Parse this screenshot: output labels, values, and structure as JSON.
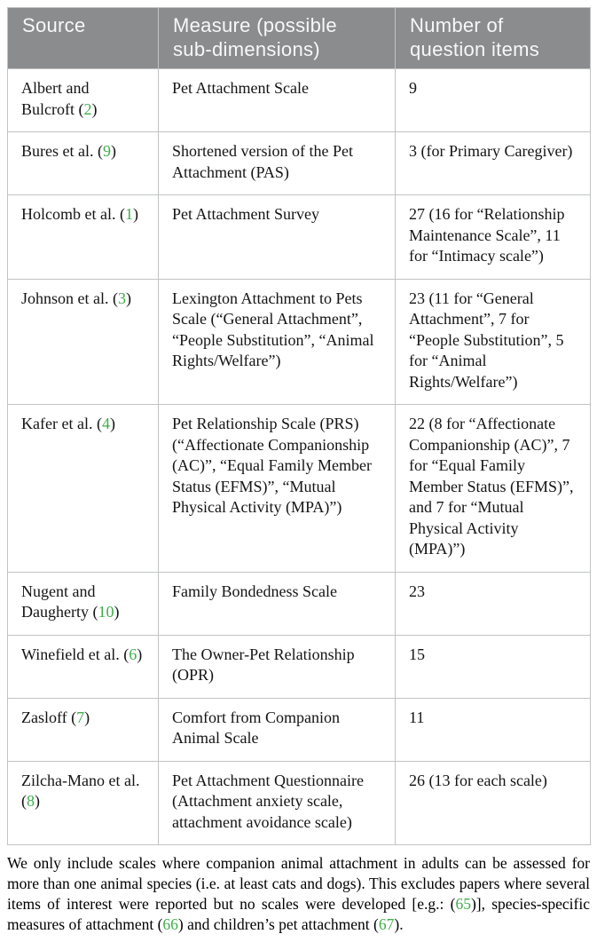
{
  "colors": {
    "header_bg": "#8a8c8d",
    "header_text": "#f7f8f8",
    "border": "#c2c3c4",
    "citation_green": "#3eae49",
    "text": "#141414"
  },
  "table": {
    "headers": [
      "Source",
      "Measure (possible sub-dimensions)",
      "Number of question items"
    ],
    "rows": [
      {
        "source": [
          {
            "t": "Albert and Bulcroft ("
          },
          {
            "t": "2",
            "ref": true
          },
          {
            "t": ")"
          }
        ],
        "measure": "Pet Attachment Scale",
        "items": "9"
      },
      {
        "source": [
          {
            "t": "Bures et al. ("
          },
          {
            "t": "9",
            "ref": true
          },
          {
            "t": ")"
          }
        ],
        "measure": "Shortened version of the Pet Attachment (PAS)",
        "items": "3 (for Primary Caregiver)"
      },
      {
        "source": [
          {
            "t": "Holcomb et al. ("
          },
          {
            "t": "1",
            "ref": true
          },
          {
            "t": ")"
          }
        ],
        "measure": "Pet Attachment Survey",
        "items": "27 (16 for “Relationship Maintenance Scale”, 11 for “Intimacy scale”)"
      },
      {
        "source": [
          {
            "t": "Johnson et al. ("
          },
          {
            "t": "3",
            "ref": true
          },
          {
            "t": ")"
          }
        ],
        "measure": "Lexington Attachment to Pets Scale (“General Attachment”, “People Substitution”, “Animal Rights/Welfare”)",
        "items": "23 (11 for “General Attachment”, 7 for “People Substitution”, 5 for “Animal Rights/Welfare”)"
      },
      {
        "source": [
          {
            "t": "Kafer et al. ("
          },
          {
            "t": "4",
            "ref": true
          },
          {
            "t": ")"
          }
        ],
        "measure": "Pet Relationship Scale (PRS) (“Affectionate Companionship (AC)”, “Equal Family Member Status (EFMS)”, “Mutual Physical Activity (MPA)”)",
        "items": "22 (8 for “Affectionate Companionship (AC)”, 7 for “Equal Family Member Status (EFMS)”, and 7 for “Mutual Physical Activity (MPA)”)"
      },
      {
        "source": [
          {
            "t": "Nugent and Daugherty ("
          },
          {
            "t": "10",
            "ref": true
          },
          {
            "t": ")"
          }
        ],
        "measure": "Family Bondedness Scale",
        "items": "23"
      },
      {
        "source": [
          {
            "t": "Winefield et al. ("
          },
          {
            "t": "6",
            "ref": true
          },
          {
            "t": ")"
          }
        ],
        "measure": "The Owner-Pet Relationship (OPR)",
        "items": "15"
      },
      {
        "source": [
          {
            "t": "Zasloff ("
          },
          {
            "t": "7",
            "ref": true
          },
          {
            "t": ")"
          }
        ],
        "measure": "Comfort from Companion Animal Scale",
        "items": "11"
      },
      {
        "source": [
          {
            "t": "Zilcha-Mano et al. ("
          },
          {
            "t": "8",
            "ref": true
          },
          {
            "t": ")"
          }
        ],
        "measure": "Pet Attachment Questionnaire (Attachment anxiety scale, attachment avoidance scale)",
        "items": "26 (13 for each scale)"
      }
    ]
  },
  "footnote": [
    {
      "t": "We only include scales where companion animal attachment in adults can be assessed for more than one animal species (i.e. at least cats and dogs). This excludes papers where several items of interest were reported but no scales were developed [e.g.: ("
    },
    {
      "t": "65",
      "ref": true
    },
    {
      "t": ")], species-specific measures of attachment ("
    },
    {
      "t": "66",
      "ref": true
    },
    {
      "t": ") and children’s pet attachment ("
    },
    {
      "t": "67",
      "ref": true
    },
    {
      "t": ")."
    }
  ]
}
